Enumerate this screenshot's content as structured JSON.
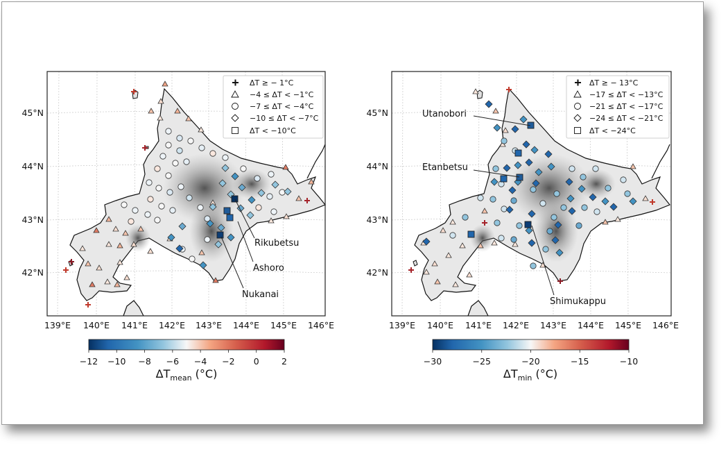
{
  "colors": {
    "land_shade": "#6e6e6e",
    "coast": "#111111",
    "grid": "#c8c8c8",
    "frame": "#222222"
  },
  "axes": {
    "lon_labels": [
      "139°E",
      "140°E",
      "141°E",
      "142°E",
      "143°E",
      "144°E",
      "145°E",
      "146°E"
    ],
    "lat_labels": [
      "42°N",
      "43°N",
      "44°N",
      "45°N"
    ]
  },
  "panels": [
    {
      "id": "mean",
      "legend": [
        {
          "marker": "plus",
          "text": "ΔT ≥ − 1°C"
        },
        {
          "marker": "triangle",
          "text": "−4 ≤ ΔT < −1°C"
        },
        {
          "marker": "circle",
          "text": "−7 ≤ ΔT < −4°C"
        },
        {
          "marker": "diamond",
          "text": "−10 ≤ ΔT < −7°C"
        },
        {
          "marker": "square",
          "text": "ΔT < −10°C"
        }
      ],
      "annotations": [
        "Rikubetsu",
        "Ashoro",
        "Nukanai"
      ],
      "colorbar": {
        "label_main": "ΔT",
        "label_sub": "mean",
        "label_unit": " (°C)",
        "ticks": [
          "−12",
          "−10",
          "−8",
          "−6",
          "−4",
          "−2",
          "0",
          "2"
        ],
        "vmin": -12,
        "vmax": 2
      }
    },
    {
      "id": "min",
      "legend": [
        {
          "marker": "plus",
          "text": "ΔT ≥ − 13°C"
        },
        {
          "marker": "triangle",
          "text": "−17 ≤ ΔT < −13°C"
        },
        {
          "marker": "circle",
          "text": "−21 ≤ ΔT < −17°C"
        },
        {
          "marker": "diamond",
          "text": "−24 ≤ ΔT < −21°C"
        },
        {
          "marker": "square",
          "text": "ΔT < −24°C"
        }
      ],
      "annotations": [
        "Utanobori",
        "Etanbetsu",
        "Shimukappu"
      ],
      "colorbar": {
        "label_main": "ΔT",
        "label_sub": "min",
        "label_unit": " (°C)",
        "ticks": [
          "−30",
          "−25",
          "−20",
          "−15",
          "−10"
        ],
        "vmin": -30,
        "vmax": -10
      }
    }
  ]
}
